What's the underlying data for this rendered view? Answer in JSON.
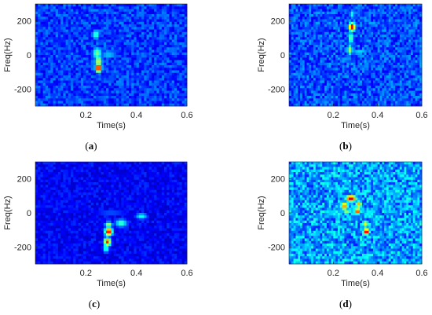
{
  "colors": {
    "background": "#00007f",
    "hot": "#ff0000"
  },
  "chart_data": [
    {
      "type": "heatmap",
      "caption": "(a)",
      "xlabel": "Time(s)",
      "ylabel": "Freq(Hz)",
      "xlim": [
        0,
        0.6
      ],
      "ylim": [
        -300,
        300
      ],
      "xticks": [
        0.2,
        0.4,
        0.6
      ],
      "yticks": [
        200,
        0,
        -200
      ],
      "colormap": "jet",
      "background_level": 0.18,
      "hotspots": [
        {
          "t": 0.24,
          "f": 120,
          "level": 0.45,
          "spread_t": 0.012,
          "spread_f": 25
        },
        {
          "t": 0.245,
          "f": 10,
          "level": 0.5,
          "spread_t": 0.015,
          "spread_f": 30
        },
        {
          "t": 0.29,
          "f": 0,
          "level": 0.35,
          "spread_t": 0.03,
          "spread_f": 15
        },
        {
          "t": 0.25,
          "f": -40,
          "level": 0.6,
          "spread_t": 0.012,
          "spread_f": 30
        },
        {
          "t": 0.25,
          "f": -75,
          "level": 0.95,
          "spread_t": 0.01,
          "spread_f": 22
        }
      ]
    },
    {
      "type": "heatmap",
      "caption": "(b)",
      "xlabel": "Time(s)",
      "ylabel": "Freq(Hz)",
      "xlim": [
        0,
        0.6
      ],
      "ylim": [
        -300,
        300
      ],
      "xticks": [
        0.2,
        0.4,
        0.6
      ],
      "yticks": [
        200,
        0,
        -200
      ],
      "colormap": "jet",
      "background_level": 0.2,
      "hotspots": [
        {
          "t": 0.285,
          "f": 240,
          "level": 0.4,
          "spread_t": 0.01,
          "spread_f": 25
        },
        {
          "t": 0.285,
          "f": 165,
          "level": 0.95,
          "spread_t": 0.012,
          "spread_f": 20
        },
        {
          "t": 0.28,
          "f": 100,
          "level": 0.5,
          "spread_t": 0.01,
          "spread_f": 30
        },
        {
          "t": 0.275,
          "f": 30,
          "level": 0.55,
          "spread_t": 0.01,
          "spread_f": 25
        },
        {
          "t": 0.32,
          "f": 20,
          "level": 0.35,
          "spread_t": 0.035,
          "spread_f": 12
        },
        {
          "t": 0.35,
          "f": -60,
          "level": 0.3,
          "spread_t": 0.01,
          "spread_f": 40
        },
        {
          "t": 0.27,
          "f": -20,
          "level": 0.3,
          "spread_t": 0.01,
          "spread_f": 25
        }
      ]
    },
    {
      "type": "heatmap",
      "caption": "(c)",
      "xlabel": "Time(s)",
      "ylabel": "Freq(Hz)",
      "xlim": [
        0,
        0.6
      ],
      "ylim": [
        -300,
        300
      ],
      "xticks": [
        0.2,
        0.4,
        0.6
      ],
      "yticks": [
        200,
        0,
        -200
      ],
      "colormap": "jet",
      "background_level": 0.12,
      "hotspots": [
        {
          "t": 0.3,
          "f": 0,
          "level": 0.3,
          "spread_t": 0.06,
          "spread_f": 8
        },
        {
          "t": 0.42,
          "f": -20,
          "level": 0.4,
          "spread_t": 0.02,
          "spread_f": 15
        },
        {
          "t": 0.34,
          "f": -60,
          "level": 0.45,
          "spread_t": 0.02,
          "spread_f": 20
        },
        {
          "t": 0.29,
          "f": -70,
          "level": 0.55,
          "spread_t": 0.012,
          "spread_f": 15
        },
        {
          "t": 0.29,
          "f": -110,
          "level": 0.92,
          "spread_t": 0.012,
          "spread_f": 20
        },
        {
          "t": 0.285,
          "f": -170,
          "level": 0.85,
          "spread_t": 0.011,
          "spread_f": 20
        },
        {
          "t": 0.28,
          "f": -210,
          "level": 0.45,
          "spread_t": 0.01,
          "spread_f": 20
        }
      ]
    },
    {
      "type": "heatmap",
      "caption": "(d)",
      "xlabel": "Time(s)",
      "ylabel": "Freq(Hz)",
      "xlim": [
        0,
        0.6
      ],
      "ylim": [
        -300,
        300
      ],
      "xticks": [
        0.2,
        0.4,
        0.6
      ],
      "yticks": [
        200,
        0,
        -200
      ],
      "colormap": "jet",
      "background_level": 0.28,
      "hotspots": [
        {
          "t": 0.28,
          "f": 85,
          "level": 0.95,
          "spread_t": 0.02,
          "spread_f": 15
        },
        {
          "t": 0.25,
          "f": 40,
          "level": 0.75,
          "spread_t": 0.015,
          "spread_f": 20
        },
        {
          "t": 0.315,
          "f": 50,
          "level": 0.7,
          "spread_t": 0.012,
          "spread_f": 18
        },
        {
          "t": 0.31,
          "f": 10,
          "level": 0.85,
          "spread_t": 0.012,
          "spread_f": 15
        },
        {
          "t": 0.26,
          "f": 5,
          "level": 0.55,
          "spread_t": 0.012,
          "spread_f": 15
        },
        {
          "t": 0.2,
          "f": 0,
          "level": 0.45,
          "spread_t": 0.05,
          "spread_f": 10
        },
        {
          "t": 0.345,
          "f": -65,
          "level": 0.6,
          "spread_t": 0.012,
          "spread_f": 20
        },
        {
          "t": 0.35,
          "f": -110,
          "level": 0.95,
          "spread_t": 0.012,
          "spread_f": 15
        },
        {
          "t": 0.4,
          "f": -30,
          "level": 0.35,
          "spread_t": 0.02,
          "spread_f": 25
        }
      ]
    }
  ]
}
